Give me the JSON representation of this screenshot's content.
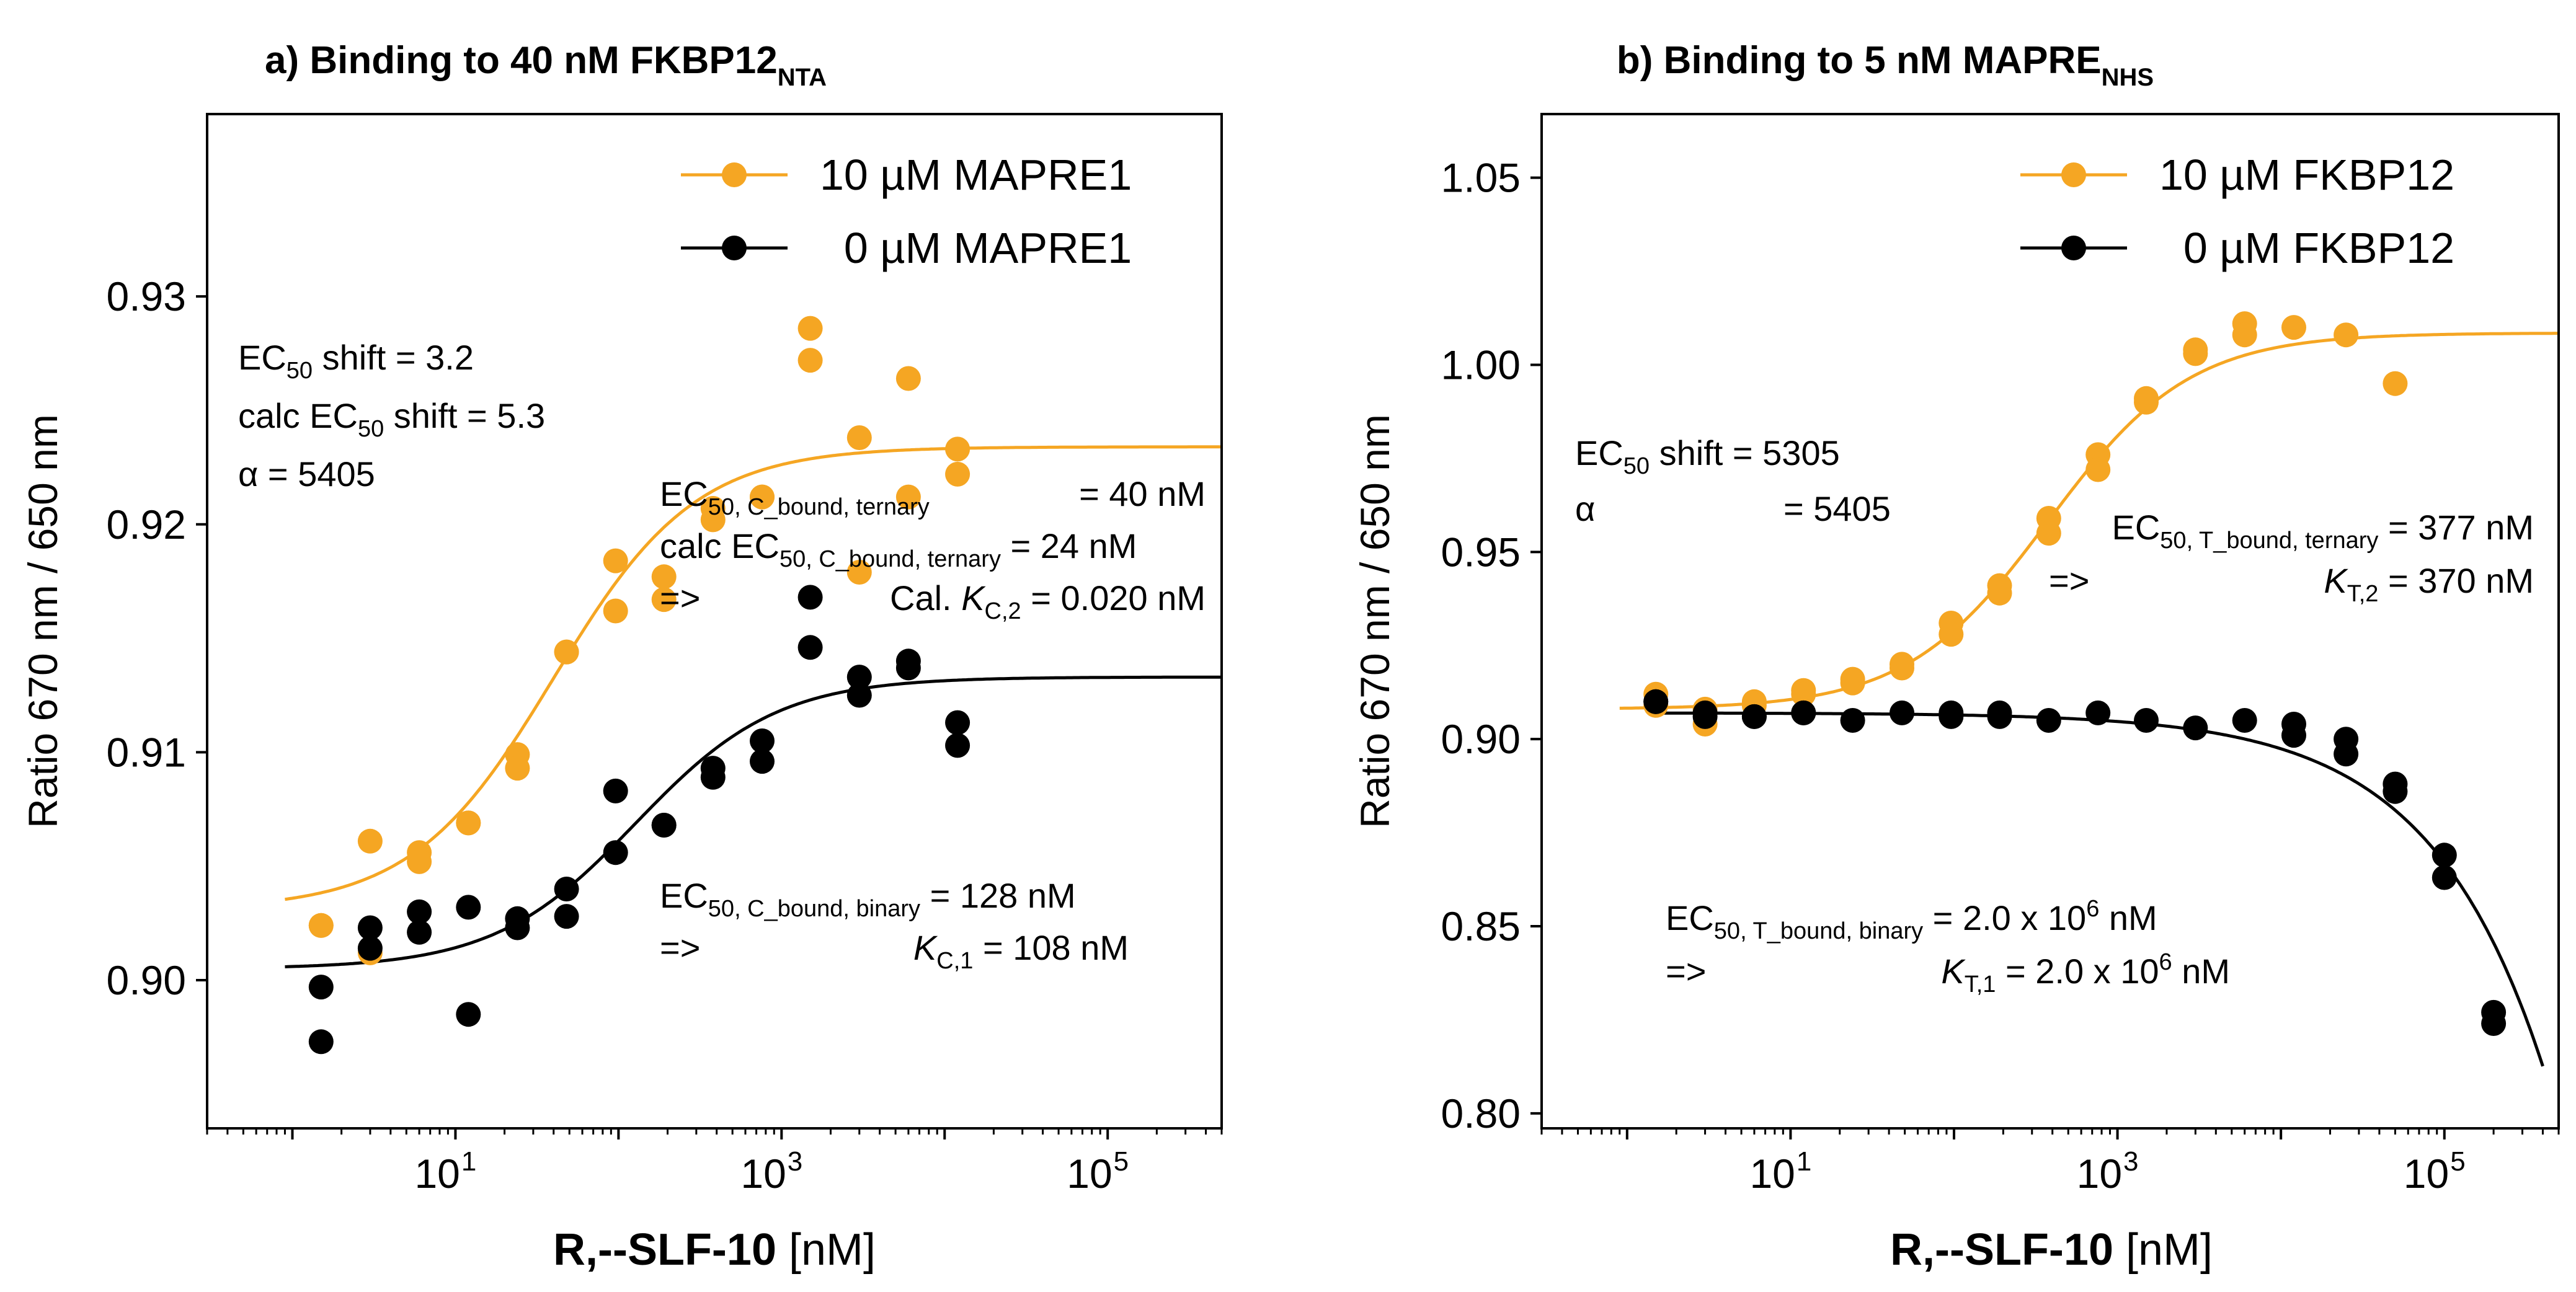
{
  "chart_data": [
    {
      "type": "scatter",
      "panel": "a",
      "title": "a) Binding to 40 nM FKBP12",
      "title_sub": "NTA",
      "xlabel_bold": "R,--SLF-10",
      "xlabel_unit": " [nM]",
      "ylabel": "Ratio 670 nm / 650 nm",
      "xscale": "log",
      "xlim": [
        0.3,
        500000
      ],
      "ylim": [
        0.8935,
        0.938
      ],
      "xticks": [
        {
          "value": 10,
          "base": "10",
          "exp": "1"
        },
        {
          "value": 1000,
          "base": "10",
          "exp": "3"
        },
        {
          "value": 100000,
          "base": "10",
          "exp": "5"
        }
      ],
      "yticks": [
        {
          "value": 0.9,
          "label": "0.90"
        },
        {
          "value": 0.91,
          "label": "0.91"
        },
        {
          "value": 0.92,
          "label": "0.92"
        },
        {
          "value": 0.93,
          "label": "0.93"
        }
      ],
      "legend_position": "top-right",
      "series": [
        {
          "name": "10 µM MAPRE1",
          "color": "#F5A623",
          "x": [
            1.5,
            1.5,
            3,
            3,
            6,
            6,
            12,
            12,
            24,
            24,
            48,
            48,
            96,
            96,
            190,
            190,
            380,
            380,
            760,
            760,
            1500,
            1500,
            3000,
            3000,
            6000,
            6000,
            12000,
            12000
          ],
          "y": [
            0.9024,
            0.9024,
            0.9061,
            0.9012,
            0.9056,
            0.9052,
            0.9069,
            0.9069,
            0.9099,
            0.9093,
            0.9144,
            0.9144,
            0.9184,
            0.9162,
            0.9167,
            0.9177,
            0.9202,
            0.9207,
            0.9212,
            0.9212,
            0.9286,
            0.9272,
            0.9238,
            0.9179,
            0.9264,
            0.9212,
            0.9233,
            0.9222
          ],
          "fit": {
            "bottom": 0.9031,
            "top": 0.9234,
            "ec50": 40
          }
        },
        {
          "name": "0 µM MAPRE1",
          "color": "#000000",
          "x": [
            1.5,
            1.5,
            3,
            3,
            6,
            6,
            12,
            12,
            24,
            24,
            48,
            48,
            96,
            96,
            190,
            190,
            380,
            380,
            760,
            760,
            1500,
            1500,
            3000,
            3000,
            6000,
            6000,
            12000,
            12000
          ],
          "y": [
            0.8973,
            0.8997,
            0.9014,
            0.9023,
            0.903,
            0.9021,
            0.9032,
            0.8985,
            0.9023,
            0.9027,
            0.9028,
            0.904,
            0.9056,
            0.9083,
            0.9068,
            0.9068,
            0.9089,
            0.9093,
            0.9105,
            0.9096,
            0.9168,
            0.9146,
            0.9125,
            0.9133,
            0.9137,
            0.914,
            0.9113,
            0.9103
          ],
          "fit": {
            "bottom": 0.9005,
            "top": 0.9133,
            "ec50": 128
          }
        }
      ],
      "annotations": {
        "shift_line1": {
          "pre": "EC",
          "sub": "50",
          "post": " shift = 3.2"
        },
        "shift_line2": {
          "pre": "calc EC",
          "sub": "50",
          "post": " shift = 5.3"
        },
        "alpha": "α = 5405",
        "ternary_line1": {
          "pre": "EC",
          "sub": "50, C_bound, ternary",
          "value": "= 40 nM"
        },
        "ternary_line2": {
          "pre": "calc EC",
          "sub": "50, C_bound, ternary",
          "post": " = 24 nM"
        },
        "ternary_arrow": "=>",
        "ternary_k": {
          "pre": "Cal. ",
          "k": "K",
          "sub": "C,2",
          "post": " = 0.020 nM"
        },
        "binary_line1": {
          "pre": "EC",
          "sub": "50, C_bound, binary",
          "post": " = 128 nM"
        },
        "binary_arrow": "=>",
        "binary_k": {
          "k": "K",
          "sub": "C,1",
          "post": " = 108 nM"
        }
      }
    },
    {
      "type": "scatter",
      "panel": "b",
      "title": "b) Binding to 5 nM MAPRE",
      "title_sub": "NHS",
      "xlabel_bold": "R,--SLF-10",
      "xlabel_unit": " [nM]",
      "ylabel": "Ratio 670 nm / 650 nm",
      "xscale": "log",
      "xlim": [
        0.3,
        500000
      ],
      "ylim": [
        0.796,
        1.067
      ],
      "xticks": [
        {
          "value": 10,
          "base": "10",
          "exp": "1"
        },
        {
          "value": 1000,
          "base": "10",
          "exp": "3"
        },
        {
          "value": 100000,
          "base": "10",
          "exp": "5"
        }
      ],
      "yticks": [
        {
          "value": 0.8,
          "label": "0.80"
        },
        {
          "value": 0.85,
          "label": "0.85"
        },
        {
          "value": 0.9,
          "label": "0.90"
        },
        {
          "value": 0.95,
          "label": "0.95"
        },
        {
          "value": 1.0,
          "label": "1.00"
        },
        {
          "value": 1.05,
          "label": "1.05"
        }
      ],
      "legend_position": "top-right",
      "series": [
        {
          "name": "10 µM FKBP12",
          "color": "#F5A623",
          "x": [
            1.5,
            1.5,
            3,
            3,
            6,
            6,
            12,
            12,
            24,
            24,
            48,
            48,
            96,
            96,
            190,
            190,
            380,
            380,
            760,
            760,
            1500,
            1500,
            3000,
            3000,
            6000,
            6000,
            12000,
            25000,
            50000
          ],
          "y": [
            0.912,
            0.909,
            0.908,
            0.904,
            0.91,
            0.909,
            0.913,
            0.912,
            0.915,
            0.916,
            0.92,
            0.919,
            0.931,
            0.928,
            0.941,
            0.939,
            0.959,
            0.955,
            0.976,
            0.972,
            0.99,
            0.991,
            1.003,
            1.004,
            1.011,
            1.008,
            1.01,
            1.008,
            0.995
          ],
          "fit": {
            "bottom": 0.908,
            "top": 1.0085,
            "ec50": 377
          }
        },
        {
          "name": "0 µM FKBP12",
          "color": "#000000",
          "x": [
            1.5,
            1.5,
            3,
            3,
            6,
            6,
            12,
            12,
            24,
            48,
            96,
            96,
            190,
            190,
            380,
            760,
            1500,
            3000,
            6000,
            12000,
            12000,
            25000,
            25000,
            50000,
            50000,
            100000,
            100000,
            200000,
            200000
          ],
          "y": [
            0.91,
            0.91,
            0.906,
            0.907,
            0.906,
            0.906,
            0.907,
            0.907,
            0.905,
            0.907,
            0.906,
            0.907,
            0.907,
            0.906,
            0.905,
            0.907,
            0.905,
            0.903,
            0.905,
            0.904,
            0.901,
            0.9,
            0.896,
            0.888,
            0.886,
            0.869,
            0.863,
            0.827,
            0.824
          ],
          "fit": {
            "top": 0.907,
            "drop_scale": 0.0023,
            "drop_ref": 1000
          }
        }
      ],
      "annotations": {
        "shift_line1": {
          "pre": "EC",
          "sub": "50",
          "post": " shift = 5305"
        },
        "alpha_sym": "α",
        "alpha_val": "= 5405",
        "ternary_line1": {
          "pre": "EC",
          "sub": "50, T_bound, ternary",
          "post": " = 377 nM"
        },
        "ternary_arrow": "=>",
        "ternary_k": {
          "k": "K",
          "sub": "T,2",
          "post": " = 370 nM"
        },
        "binary_line1": {
          "pre": "EC",
          "sub": "50, T_bound, binary",
          "post": " = 2.0 x 10",
          "sup": "6",
          "post2": " nM"
        },
        "binary_arrow": "=>",
        "binary_k": {
          "k": "K",
          "sub": "T,1",
          "post": " = 2.0 x 10",
          "sup": "6",
          "post2": " nM"
        }
      }
    }
  ]
}
